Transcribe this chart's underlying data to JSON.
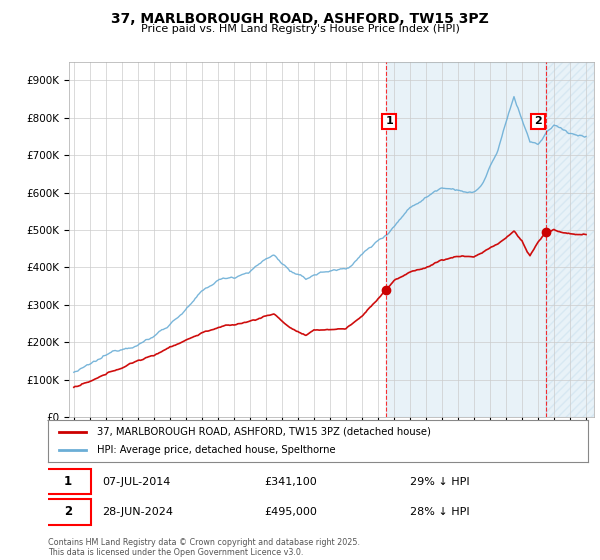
{
  "title": "37, MARLBOROUGH ROAD, ASHFORD, TW15 3PZ",
  "subtitle": "Price paid vs. HM Land Registry's House Price Index (HPI)",
  "hpi_color": "#6baed6",
  "price_color": "#cc0000",
  "annotation1_date": "07-JUL-2014",
  "annotation1_price": 341100,
  "annotation1_text": "29% ↓ HPI",
  "annotation2_date": "28-JUN-2024",
  "annotation2_price": 495000,
  "annotation2_text": "28% ↓ HPI",
  "legend1": "37, MARLBOROUGH ROAD, ASHFORD, TW15 3PZ (detached house)",
  "legend2": "HPI: Average price, detached house, Spelthorne",
  "footer": "Contains HM Land Registry data © Crown copyright and database right 2025.\nThis data is licensed under the Open Government Licence v3.0.",
  "ylim": [
    0,
    950000
  ],
  "yticks": [
    0,
    100000,
    200000,
    300000,
    400000,
    500000,
    600000,
    700000,
    800000,
    900000
  ],
  "ytick_labels": [
    "£0",
    "£100K",
    "£200K",
    "£300K",
    "£400K",
    "£500K",
    "£600K",
    "£700K",
    "£800K",
    "£900K"
  ],
  "xmin_year": 1995,
  "xmax_year": 2027,
  "xtick_years": [
    1995,
    1996,
    1997,
    1998,
    1999,
    2000,
    2001,
    2002,
    2003,
    2004,
    2005,
    2006,
    2007,
    2008,
    2009,
    2010,
    2011,
    2012,
    2013,
    2014,
    2015,
    2016,
    2017,
    2018,
    2019,
    2020,
    2021,
    2022,
    2023,
    2024,
    2025,
    2026,
    2027
  ],
  "marker1_year": 2014.5,
  "marker2_year": 2024.5,
  "background_color": "#ffffff",
  "grid_color": "#cccccc",
  "shade_color": "#ddeeff",
  "hatch_color": "#aaccee"
}
